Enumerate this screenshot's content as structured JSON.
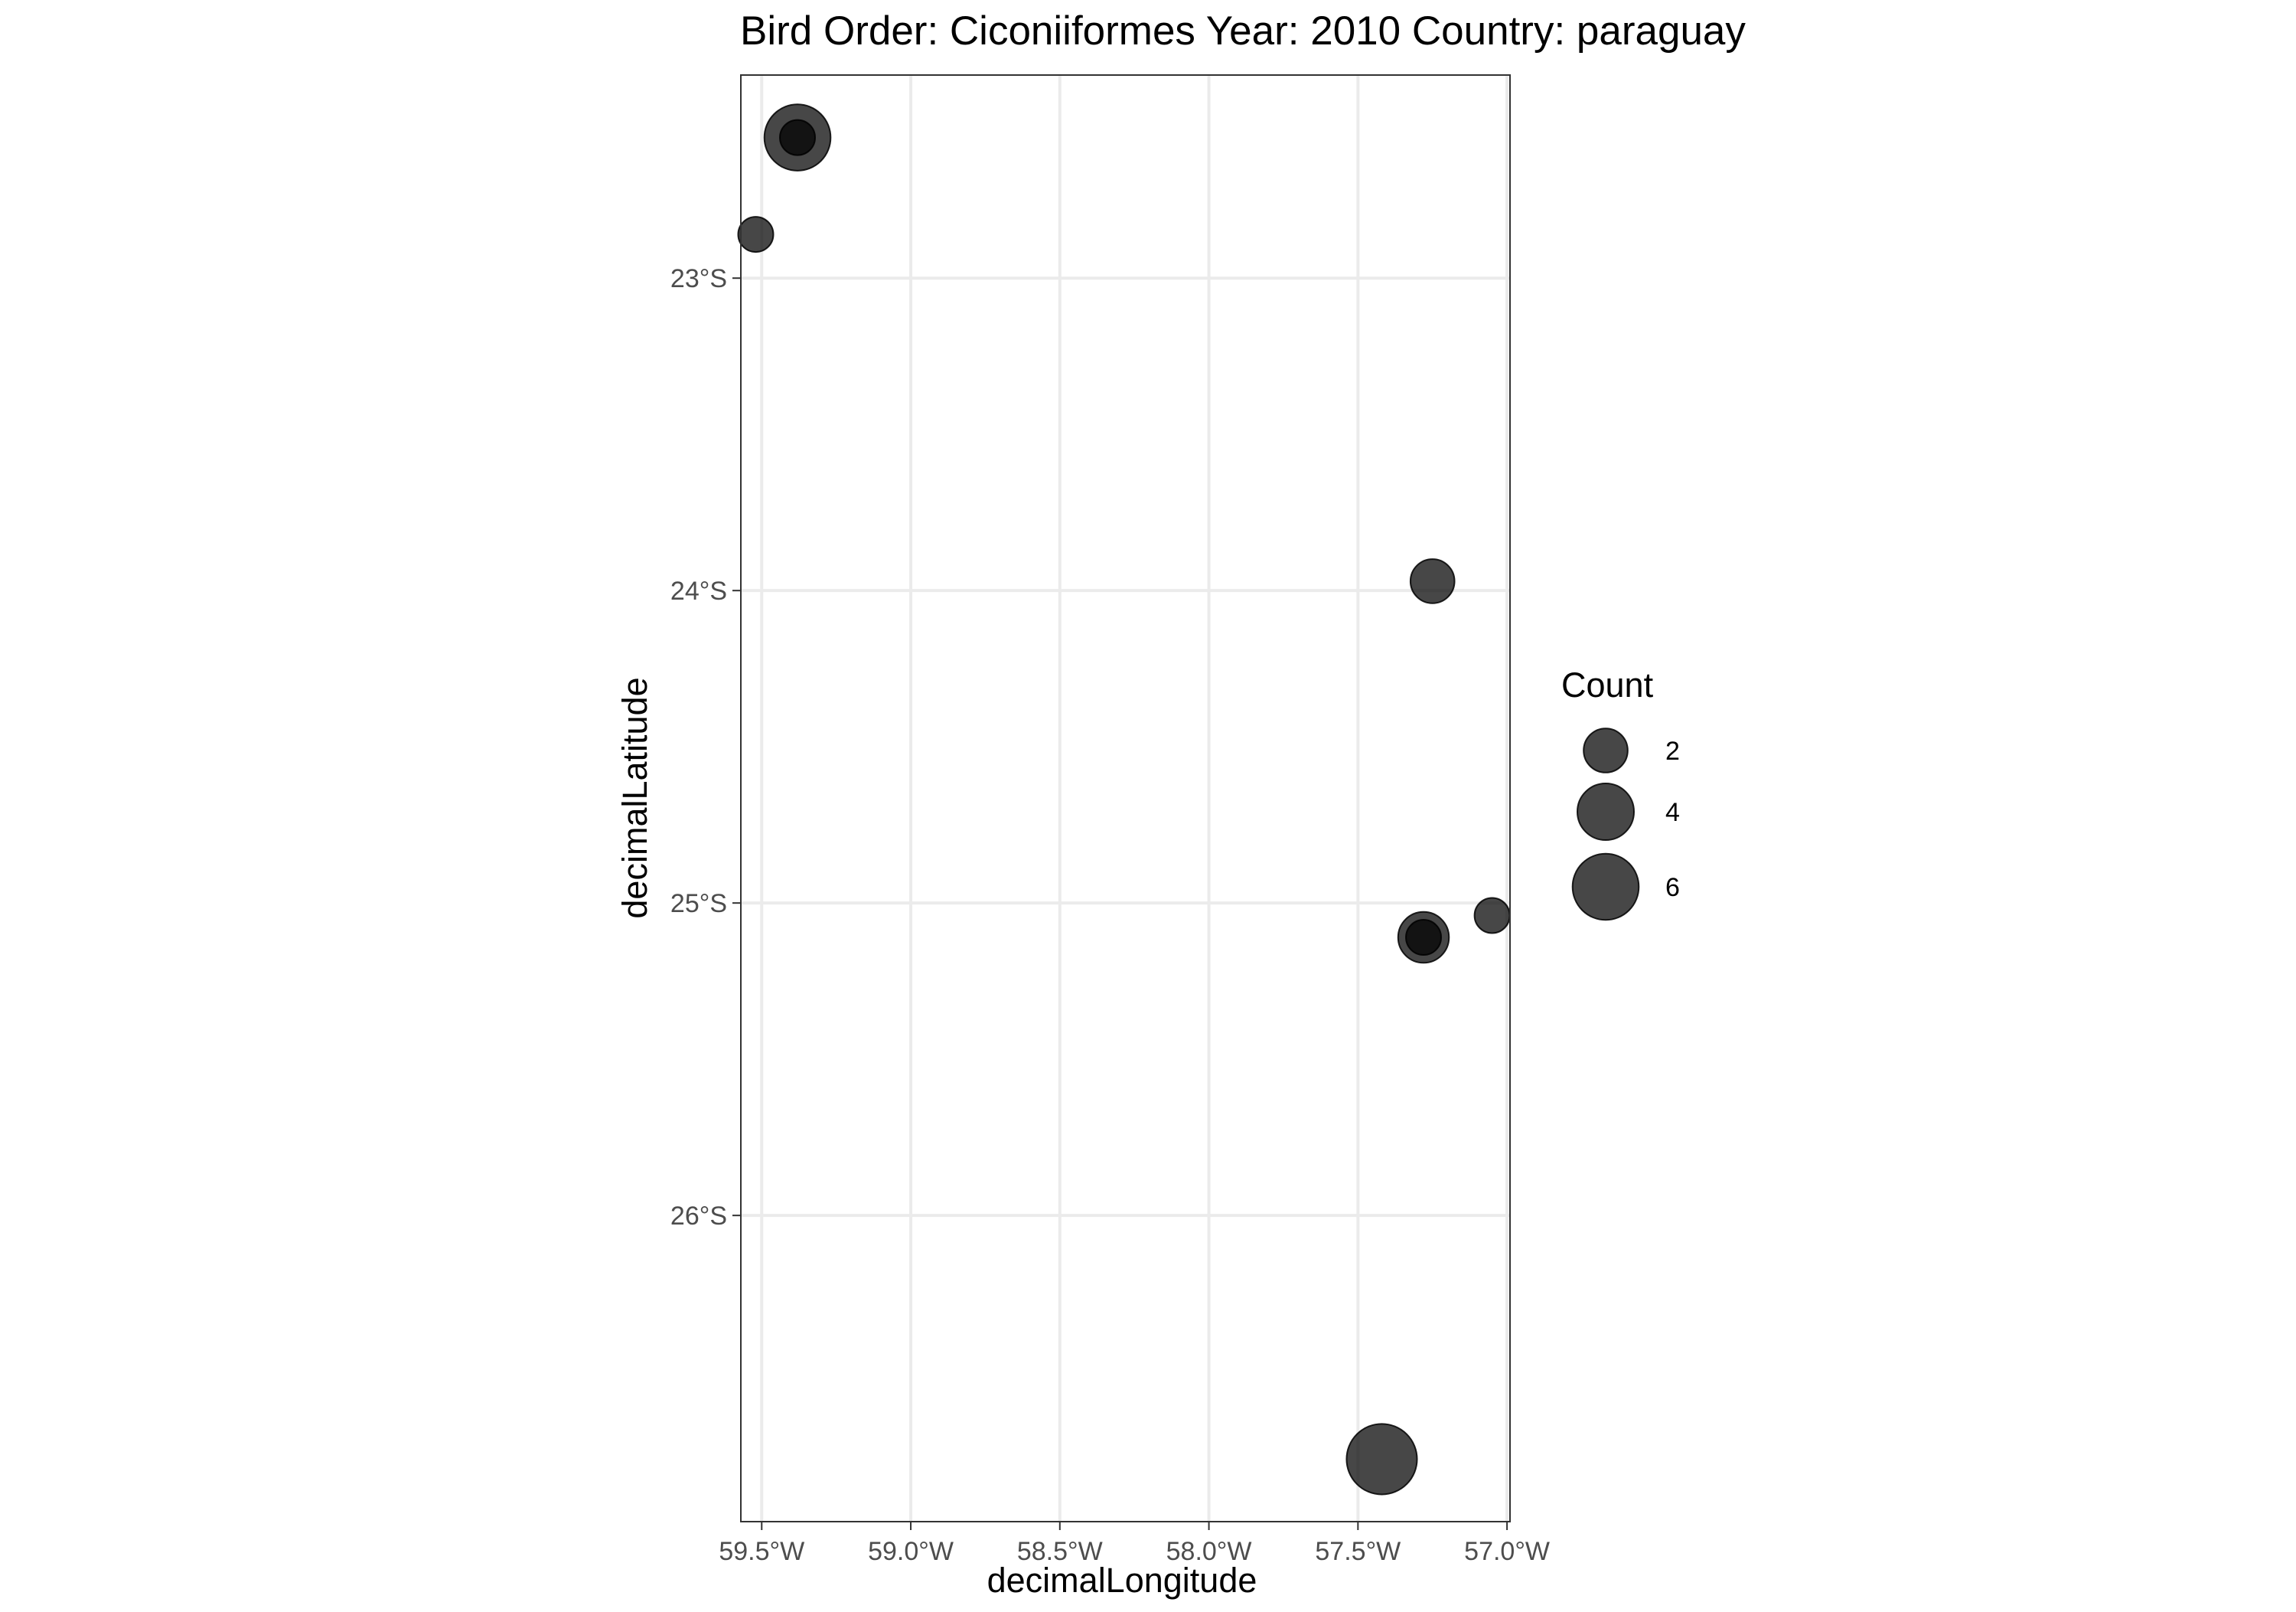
{
  "chart_data": {
    "type": "scatter",
    "title": "Bird Order: Ciconiiformes Year: 2010 Country: paraguay",
    "xlabel": "decimalLongitude",
    "ylabel": "decimalLatitude",
    "x_unit": "degrees longitude (negative = W)",
    "y_unit": "degrees latitude (negative = S)",
    "xlim": [
      -59.57,
      -56.99
    ],
    "ylim": [
      -26.98,
      -22.35
    ],
    "x_ticks": [
      -59.5,
      -59.0,
      -58.5,
      -58.0,
      -57.5,
      -57.0
    ],
    "x_tick_labels": [
      "59.5°W",
      "59.0°W",
      "58.5°W",
      "58.0°W",
      "57.5°W",
      "57.0°W"
    ],
    "y_ticks": [
      -23,
      -24,
      -25,
      -26
    ],
    "y_tick_labels": [
      "23°S",
      "24°S",
      "25°S",
      "26°S"
    ],
    "grid": true,
    "point_color": "#000000",
    "point_alpha": 0.72,
    "points": [
      {
        "lon": -59.38,
        "lat": -22.55,
        "count": 6
      },
      {
        "lon": -59.38,
        "lat": -22.55,
        "count": 1
      },
      {
        "lon": -59.52,
        "lat": -22.86,
        "count": 1
      },
      {
        "lon": -57.25,
        "lat": -23.97,
        "count": 2
      },
      {
        "lon": -57.28,
        "lat": -25.11,
        "count": 3
      },
      {
        "lon": -57.28,
        "lat": -25.11,
        "count": 1
      },
      {
        "lon": -57.05,
        "lat": -25.04,
        "count": 1
      },
      {
        "lon": -57.42,
        "lat": -26.78,
        "count": 7
      }
    ],
    "legend": {
      "title": "Count",
      "position": "right",
      "entries": [
        {
          "label": "2",
          "value": 2
        },
        {
          "label": "4",
          "value": 4
        },
        {
          "label": "6",
          "value": 6
        }
      ]
    }
  }
}
